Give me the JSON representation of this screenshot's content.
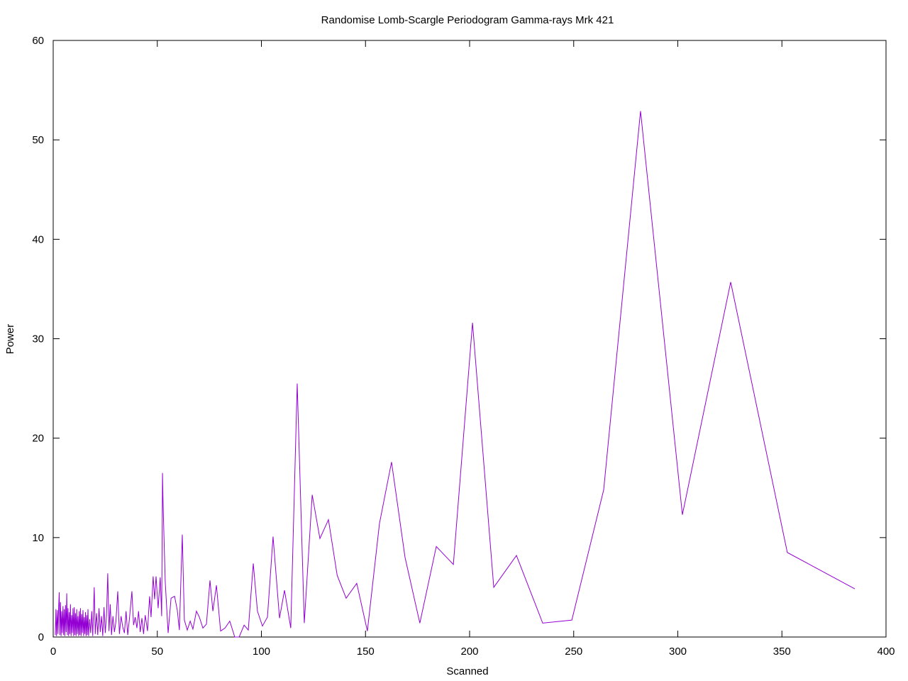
{
  "chart_data": {
    "type": "line",
    "title": "Randomise Lomb-Scargle Periodogram Gamma-rays Mrk 421",
    "x_label": "Scanned",
    "y_label": "Power",
    "x": [
      1.0,
      1.3,
      1.6,
      2.0,
      2.3,
      2.6,
      2.9,
      3.2,
      3.5,
      3.8,
      4.1,
      4.4,
      4.7,
      5.0,
      5.3,
      5.6,
      5.9,
      6.2,
      6.5,
      6.8,
      7.1,
      7.4,
      7.7,
      8.0,
      8.3,
      8.6,
      8.9,
      9.2,
      9.5,
      9.8,
      10.1,
      10.4,
      10.7,
      11.0,
      11.3,
      11.6,
      11.9,
      12.2,
      12.5,
      12.8,
      13.1,
      13.4,
      13.7,
      14.0,
      14.3,
      14.6,
      14.9,
      15.2,
      15.5,
      15.8,
      16.1,
      16.4,
      16.7,
      17.0,
      17.5,
      18.0,
      18.5,
      19.0,
      19.7,
      20.2,
      20.8,
      21.4,
      22.0,
      22.6,
      23.2,
      23.8,
      24.4,
      25.0,
      25.6,
      26.2,
      26.8,
      27.4,
      28.0,
      28.7,
      29.4,
      30.1,
      31.0,
      31.8,
      32.6,
      33.4,
      34.2,
      35.0,
      35.8,
      36.6,
      37.8,
      38.6,
      39.4,
      40.2,
      41.0,
      41.8,
      42.6,
      43.4,
      44.2,
      45.3,
      46.3,
      47.0,
      48.0,
      48.7,
      49.4,
      50.4,
      51.4,
      52.1,
      52.5,
      52.8,
      53.8,
      55.2,
      56.6,
      58.3,
      59.6,
      60.6,
      62.0,
      63.0,
      64.4,
      65.8,
      67.1,
      68.8,
      70.2,
      71.9,
      73.6,
      75.3,
      76.7,
      78.4,
      80.4,
      82.5,
      84.8,
      87.2,
      89.3,
      91.7,
      93.7,
      96.1,
      98.1,
      100.5,
      102.9,
      105.6,
      108.7,
      111.1,
      114.1,
      117.2,
      120.6,
      124.4,
      128.1,
      132.2,
      136.4,
      140.7,
      145.8,
      150.9,
      156.7,
      162.5,
      169,
      176.1,
      184.0,
      192.2,
      201.4,
      211.6,
      222.5,
      235.1,
      249.1,
      264.4,
      282.1,
      302.2,
      325.4,
      352.6,
      385
    ],
    "series": [
      {
        "color": "#9400d3",
        "values": [
          0.2,
          2.8,
          0.1,
          2.7,
          0.3,
          2.9,
          4.5,
          0.2,
          3.5,
          0.1,
          2.6,
          0.4,
          3.1,
          0.2,
          2.8,
          0.1,
          3.2,
          0.5,
          4.4,
          0.2,
          2.9,
          0.1,
          2.5,
          0.3,
          3.3,
          0.1,
          2.2,
          0.4,
          2.9,
          0.1,
          3.0,
          0.2,
          2.4,
          0.1,
          2.8,
          0.3,
          2.1,
          0.1,
          2.6,
          0.2,
          2.9,
          0.1,
          2.3,
          0.4,
          2.7,
          0.1,
          2.0,
          0.3,
          2.5,
          0.1,
          2.2,
          0.2,
          2.8,
          0.1,
          1.8,
          0.4,
          2.6,
          0.1,
          5.0,
          0.3,
          2.4,
          0.2,
          2.9,
          0.5,
          2.1,
          0.1,
          3.0,
          0.4,
          2.2,
          6.4,
          0.6,
          3.3,
          0.2,
          2.1,
          0.5,
          1.5,
          4.6,
          0.3,
          2.1,
          1.0,
          0.4,
          2.6,
          0.2,
          1.8,
          4.6,
          1.2,
          2.0,
          0.9,
          2.6,
          0.5,
          1.9,
          0.3,
          2.2,
          0.6,
          4.1,
          2.0,
          6.1,
          3.8,
          6.1,
          2.9,
          6.0,
          2.1,
          16.5,
          13.2,
          5.6,
          0.4,
          3.9,
          4.1,
          2.7,
          0.7,
          10.3,
          1.7,
          0.7,
          1.6,
          0.8,
          2.6,
          2.0,
          0.9,
          1.3,
          5.7,
          2.6,
          5.2,
          0.6,
          0.9,
          1.6,
          0,
          0,
          1.2,
          0.7,
          7.4,
          2.6,
          1.1,
          2.0,
          10.1,
          1.9,
          4.7,
          0.9,
          25.5,
          1.4,
          14.3,
          9.9,
          11.8,
          6.2,
          3.9,
          5.4,
          0.6,
          11.4,
          17.6,
          8.0,
          1.4,
          9.1,
          7.3,
          31.6,
          5.0,
          8.2,
          1.4,
          1.7,
          14.8,
          52.9,
          12.3,
          35.7,
          8.5,
          4.85
        ]
      }
    ],
    "xlim": [
      0,
      400
    ],
    "xticks": [
      0,
      50,
      100,
      150,
      200,
      250,
      300,
      350,
      400
    ],
    "ylim": [
      0,
      60
    ],
    "yticks": [
      0,
      10,
      20,
      30,
      40,
      50,
      60
    ],
    "grid": false
  }
}
